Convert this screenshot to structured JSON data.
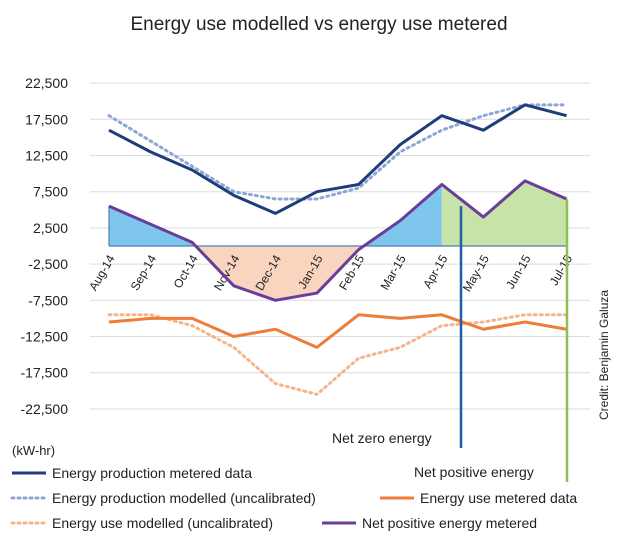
{
  "chart_data": {
    "type": "line",
    "title": "Energy use modelled vs energy use metered",
    "ylabel": "(kW-hr)",
    "xlabel": "",
    "ylim": [
      -25000,
      25000
    ],
    "y_ticks": [
      22500,
      17500,
      12500,
      7500,
      2500,
      -2500,
      -7500,
      -12500,
      -17500,
      -22500
    ],
    "y_tick_labels": [
      "22,500",
      "17,500",
      "12,500",
      "7,500",
      "2,500",
      "-2,500",
      "-7,500",
      "-12,500",
      "-17,500",
      "-22,500"
    ],
    "categories": [
      "Aug-14",
      "Sep-14",
      "Oct-14",
      "Nov-14",
      "Dec-14",
      "Jan-15",
      "Feb-15",
      "Mar-15",
      "Apr-15",
      "May-15",
      "Jun-15",
      "Jul-15"
    ],
    "grid": true,
    "legend_position": "bottom",
    "series": [
      {
        "name": "Energy production metered data",
        "color": "#1f3d7a",
        "style": "solid",
        "values": [
          16000,
          13000,
          10500,
          7000,
          4500,
          7500,
          8500,
          14000,
          18000,
          16000,
          19500,
          18000
        ]
      },
      {
        "name": "Energy production modelled (uncalibrated)",
        "color": "#8ea6d6",
        "style": "dotted",
        "values": [
          18000,
          14500,
          11000,
          7500,
          6500,
          6500,
          8000,
          13000,
          16000,
          18000,
          19500,
          19500
        ]
      },
      {
        "name": "Energy use metered data",
        "color": "#f07c3a",
        "style": "solid",
        "values": [
          -10500,
          -10000,
          -10000,
          -12500,
          -11500,
          -14000,
          -9500,
          -10000,
          -9500,
          -11500,
          -10500,
          -11500
        ]
      },
      {
        "name": "Energy use modelled (uncalibrated)",
        "color": "#f5b48a",
        "style": "dotted",
        "values": [
          -9500,
          -9500,
          -11000,
          -14000,
          -19000,
          -20500,
          -15500,
          -14000,
          -11000,
          -10500,
          -9500,
          -9500
        ]
      },
      {
        "name": "Net positive energy metered",
        "color": "#6a3d9a",
        "style": "solid",
        "values": [
          5500,
          3000,
          500,
          -5500,
          -7500,
          -6500,
          -500,
          3500,
          8500,
          4000,
          9000,
          6500
        ]
      }
    ],
    "annotations": [
      {
        "text": "Net zero energy",
        "at": "May-15",
        "color": "#1f5fa8"
      },
      {
        "text": "Net positive energy",
        "at": "Jul-15",
        "color": "#8cc152"
      }
    ],
    "fill_colors": {
      "positive": "#7fc6ee",
      "negative": "#f9d4bf",
      "net_positive": "#c8e3a8"
    }
  },
  "credit": "Credit: Benjamin Galuza"
}
